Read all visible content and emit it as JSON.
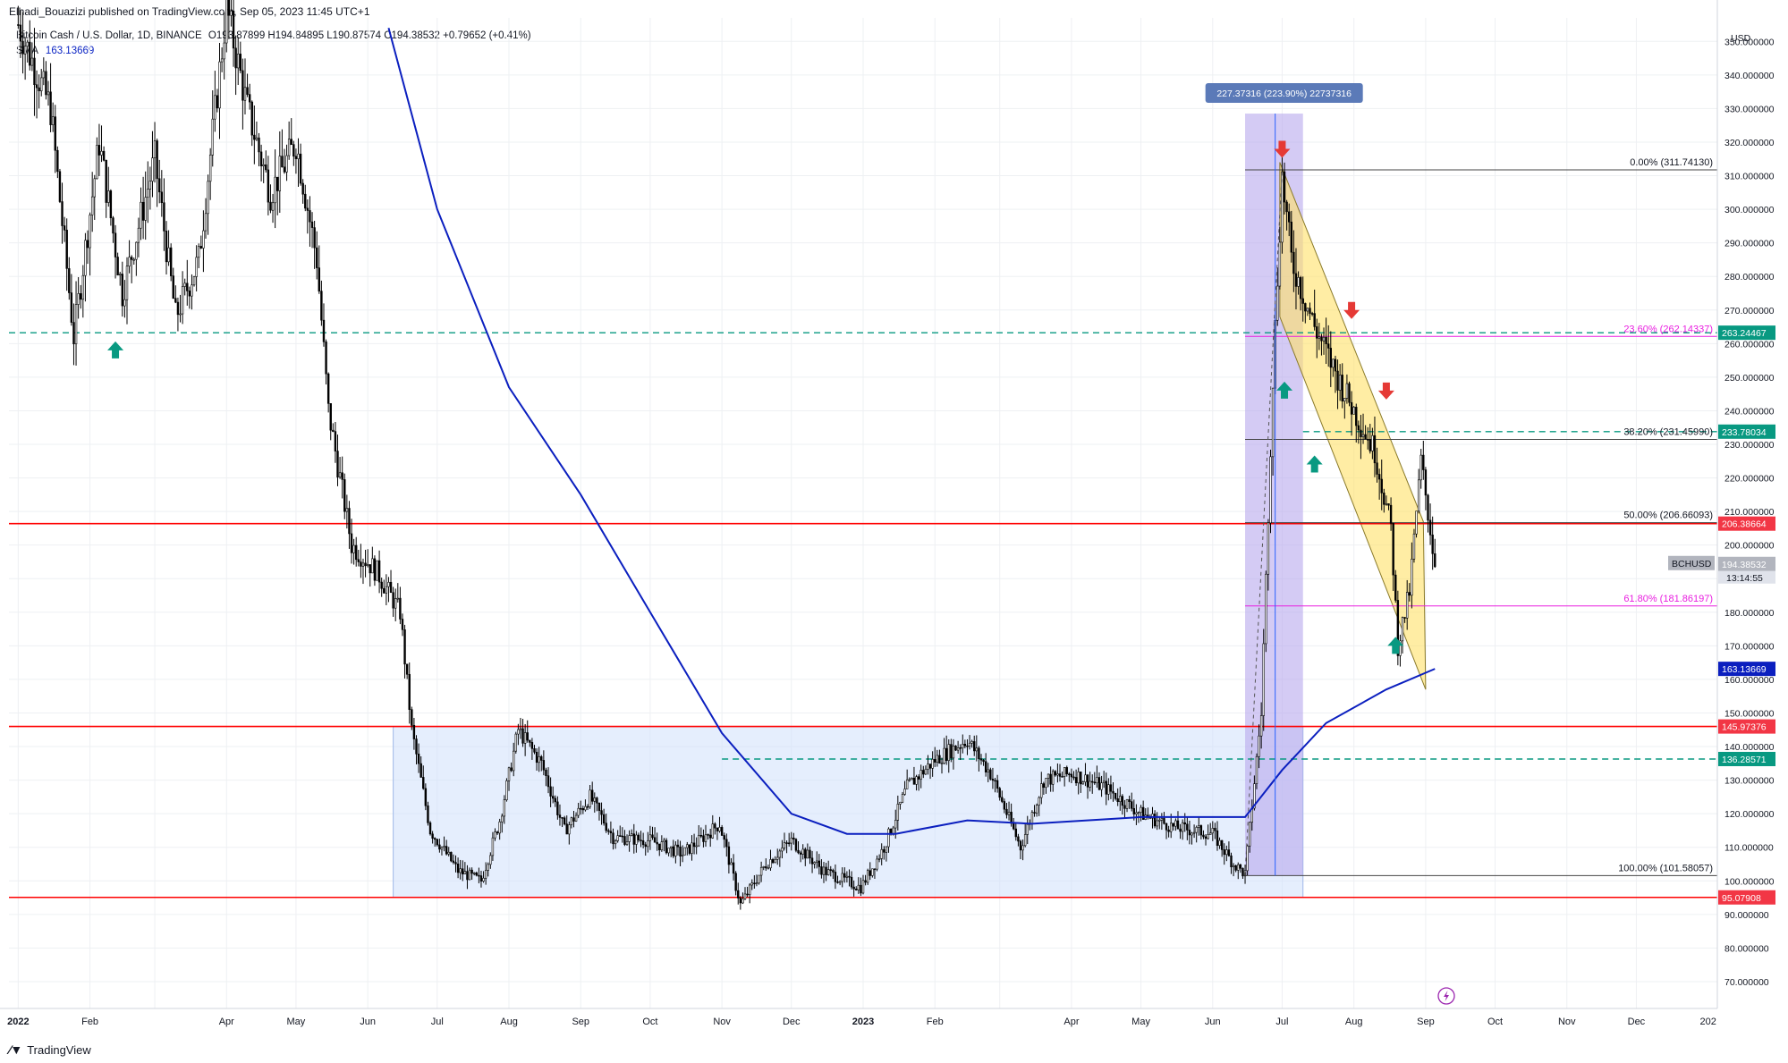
{
  "header": {
    "published": "Elhadi_Bouazizi published on TradingView.com, Sep 05, 2023 11:45 UTC+1",
    "symbol": "Bitcoin Cash / U.S. Dollar, 1D, BINANCE",
    "ohlc": "O193.87899  H194.84895  L190.87574  C194.38532  +0.79652 (+0.41%)",
    "sma_label": "SMA",
    "sma_value": "163.13669"
  },
  "currency": "USD",
  "footer_logo": "TradingView",
  "colors": {
    "candle": "#000000",
    "sma": "#0b1fbf",
    "support_line": "#ff0000",
    "dashed_level": "#089981",
    "fib_pink": "#e91ee0",
    "channel": "#ffe168",
    "range_box": "#cfe0fb",
    "measure_box": "#b8a9ec",
    "arrow_up": "#089981",
    "arrow_down": "#e53935"
  },
  "chart_data": {
    "type": "candlestick",
    "title": "Bitcoin Cash / U.S. Dollar, 1D, BINANCE",
    "xlabel": "",
    "ylabel": "",
    "x_ticks": [
      "2022",
      "Feb",
      "Apr",
      "May",
      "Jun",
      "Jul",
      "Aug",
      "Sep",
      "Oct",
      "Nov",
      "Dec",
      "2023",
      "Feb",
      "Apr",
      "May",
      "Jun",
      "Jul",
      "Aug",
      "Sep",
      "Oct",
      "Nov",
      "Dec",
      "202"
    ],
    "ylim": [
      62,
      357
    ],
    "y_ticks": [
      70,
      80,
      90,
      100,
      110,
      120,
      130,
      140,
      150,
      160,
      170,
      180,
      190,
      200,
      210,
      220,
      230,
      240,
      250,
      260,
      270,
      280,
      290,
      300,
      310,
      320,
      330,
      340,
      350
    ],
    "y_tick_labels": [
      "70.000000",
      "80.000000",
      "90.000000",
      "100.000000",
      "110.000000",
      "120.000000",
      "130.000000",
      "140.000000",
      "150.000000",
      "160.000000",
      "170.000000",
      "180.000000",
      "190.000000",
      "200.000000",
      "210.000000",
      "220.000000",
      "230.000000",
      "240.000000",
      "250.000000",
      "260.000000",
      "270.000000",
      "280.000000",
      "290.000000",
      "300.000000",
      "310.000000",
      "320.000000",
      "330.000000",
      "340.000000",
      "350.000000"
    ],
    "price_path": [
      [
        "2022-01-01",
        355
      ],
      [
        "2022-01-15",
        330
      ],
      [
        "2022-01-25",
        262
      ],
      [
        "2022-02-05",
        320
      ],
      [
        "2022-02-15",
        275
      ],
      [
        "2022-03-01",
        315
      ],
      [
        "2022-03-10",
        268
      ],
      [
        "2022-03-20",
        285
      ],
      [
        "2022-04-01",
        360
      ],
      [
        "2022-04-10",
        330
      ],
      [
        "2022-04-20",
        305
      ],
      [
        "2022-05-01",
        320
      ],
      [
        "2022-05-10",
        285
      ],
      [
        "2022-05-15",
        240
      ],
      [
        "2022-05-25",
        200
      ],
      [
        "2022-06-05",
        192
      ],
      [
        "2022-06-15",
        180
      ],
      [
        "2022-06-20",
        145
      ],
      [
        "2022-06-28",
        115
      ],
      [
        "2022-07-10",
        103
      ],
      [
        "2022-07-20",
        100
      ],
      [
        "2022-07-28",
        118
      ],
      [
        "2022-08-05",
        145
      ],
      [
        "2022-08-15",
        135
      ],
      [
        "2022-08-25",
        115
      ],
      [
        "2022-09-05",
        125
      ],
      [
        "2022-09-15",
        113
      ],
      [
        "2022-10-01",
        112
      ],
      [
        "2022-10-15",
        108
      ],
      [
        "2022-10-31",
        117
      ],
      [
        "2022-11-09",
        93
      ],
      [
        "2022-11-20",
        105
      ],
      [
        "2022-12-01",
        112
      ],
      [
        "2022-12-15",
        103
      ],
      [
        "2022-12-31",
        98
      ],
      [
        "2023-01-10",
        110
      ],
      [
        "2023-01-20",
        128
      ],
      [
        "2023-02-01",
        136
      ],
      [
        "2023-02-15",
        142
      ],
      [
        "2023-02-25",
        132
      ],
      [
        "2023-03-10",
        110
      ],
      [
        "2023-03-20",
        130
      ],
      [
        "2023-04-01",
        132
      ],
      [
        "2023-04-15",
        128
      ],
      [
        "2023-05-01",
        120
      ],
      [
        "2023-05-15",
        116
      ],
      [
        "2023-06-01",
        114
      ],
      [
        "2023-06-10",
        105
      ],
      [
        "2023-06-15",
        102
      ],
      [
        "2023-06-22",
        150
      ],
      [
        "2023-06-27",
        250
      ],
      [
        "2023-07-01",
        310
      ],
      [
        "2023-07-05",
        285
      ],
      [
        "2023-07-15",
        265
      ],
      [
        "2023-07-25",
        250
      ],
      [
        "2023-08-01",
        240
      ],
      [
        "2023-08-10",
        228
      ],
      [
        "2023-08-17",
        205
      ],
      [
        "2023-08-20",
        170
      ],
      [
        "2023-08-25",
        186
      ],
      [
        "2023-08-30",
        225
      ],
      [
        "2023-09-05",
        194.38532
      ]
    ],
    "sma_path": [
      [
        "2022-06-10",
        354
      ],
      [
        "2022-07-01",
        300
      ],
      [
        "2022-08-01",
        247
      ],
      [
        "2022-09-01",
        215
      ],
      [
        "2022-10-01",
        180
      ],
      [
        "2022-11-01",
        144
      ],
      [
        "2022-12-01",
        120
      ],
      [
        "2022-12-25",
        114
      ],
      [
        "2023-01-15",
        114
      ],
      [
        "2023-02-15",
        118
      ],
      [
        "2023-03-15",
        117
      ],
      [
        "2023-05-01",
        119
      ],
      [
        "2023-06-15",
        119
      ],
      [
        "2023-07-01",
        133
      ],
      [
        "2023-07-20",
        147
      ],
      [
        "2023-08-15",
        157
      ],
      [
        "2023-09-05",
        163.13669
      ]
    ],
    "price_tags": [
      {
        "label": "263.24467",
        "value": 263.24467,
        "color": "#089981"
      },
      {
        "label": "233.78034",
        "value": 233.78034,
        "color": "#089981"
      },
      {
        "label": "206.38664",
        "value": 206.38664,
        "color": "#f23645"
      },
      {
        "label": "194.38532",
        "value": 194.38532,
        "color": "#b2b5be",
        "sublabel": "13:14:55",
        "name": "BCHUSD"
      },
      {
        "label": "163.13669",
        "value": 163.13669,
        "color": "#0b1fbf"
      },
      {
        "label": "145.97376",
        "value": 145.97376,
        "color": "#f23645"
      },
      {
        "label": "136.28571",
        "value": 136.28571,
        "color": "#089981"
      },
      {
        "label": "95.07908",
        "value": 95.07908,
        "color": "#f23645"
      }
    ],
    "support_resistance": [
      206.38664,
      145.97376,
      95.07908
    ],
    "dashed_levels": [
      263.24467,
      233.78034,
      136.28571
    ],
    "fibonacci": [
      {
        "label": "0.00% (311.74130)",
        "value": 311.7413
      },
      {
        "label": "23.60% (262.14337)",
        "value": 262.14337
      },
      {
        "label": "38.20% (231.45990)",
        "value": 231.4599
      },
      {
        "label": "50.00% (206.66093)",
        "value": 206.66093
      },
      {
        "label": "61.80% (181.86197)",
        "value": 181.86197
      },
      {
        "label": "100.00% (101.58057)",
        "value": 101.58057
      }
    ],
    "measure_label": "227.37316 (223.90%) 22737316",
    "range_box": {
      "start": "2022-06-12",
      "end": "2023-07-10",
      "top": 145.97376,
      "bottom": 95.07908
    },
    "measure_box": {
      "start": "2023-06-15",
      "end": "2023-07-10",
      "top": 328.5,
      "bottom": 101.58057
    },
    "channel": {
      "upper": [
        [
          "2023-06-30",
          314
        ],
        [
          "2023-08-31",
          207
        ]
      ],
      "lower": [
        [
          "2023-06-30",
          268
        ],
        [
          "2023-09-01",
          157
        ]
      ]
    },
    "arrows_up": [
      [
        "2022-02-12",
        258
      ],
      [
        "2023-07-02",
        246
      ],
      [
        "2023-07-15",
        224
      ],
      [
        "2023-08-19",
        170
      ]
    ],
    "arrows_down": [
      [
        "2023-07-01",
        318
      ],
      [
        "2023-07-31",
        270
      ],
      [
        "2023-08-15",
        246
      ]
    ]
  }
}
